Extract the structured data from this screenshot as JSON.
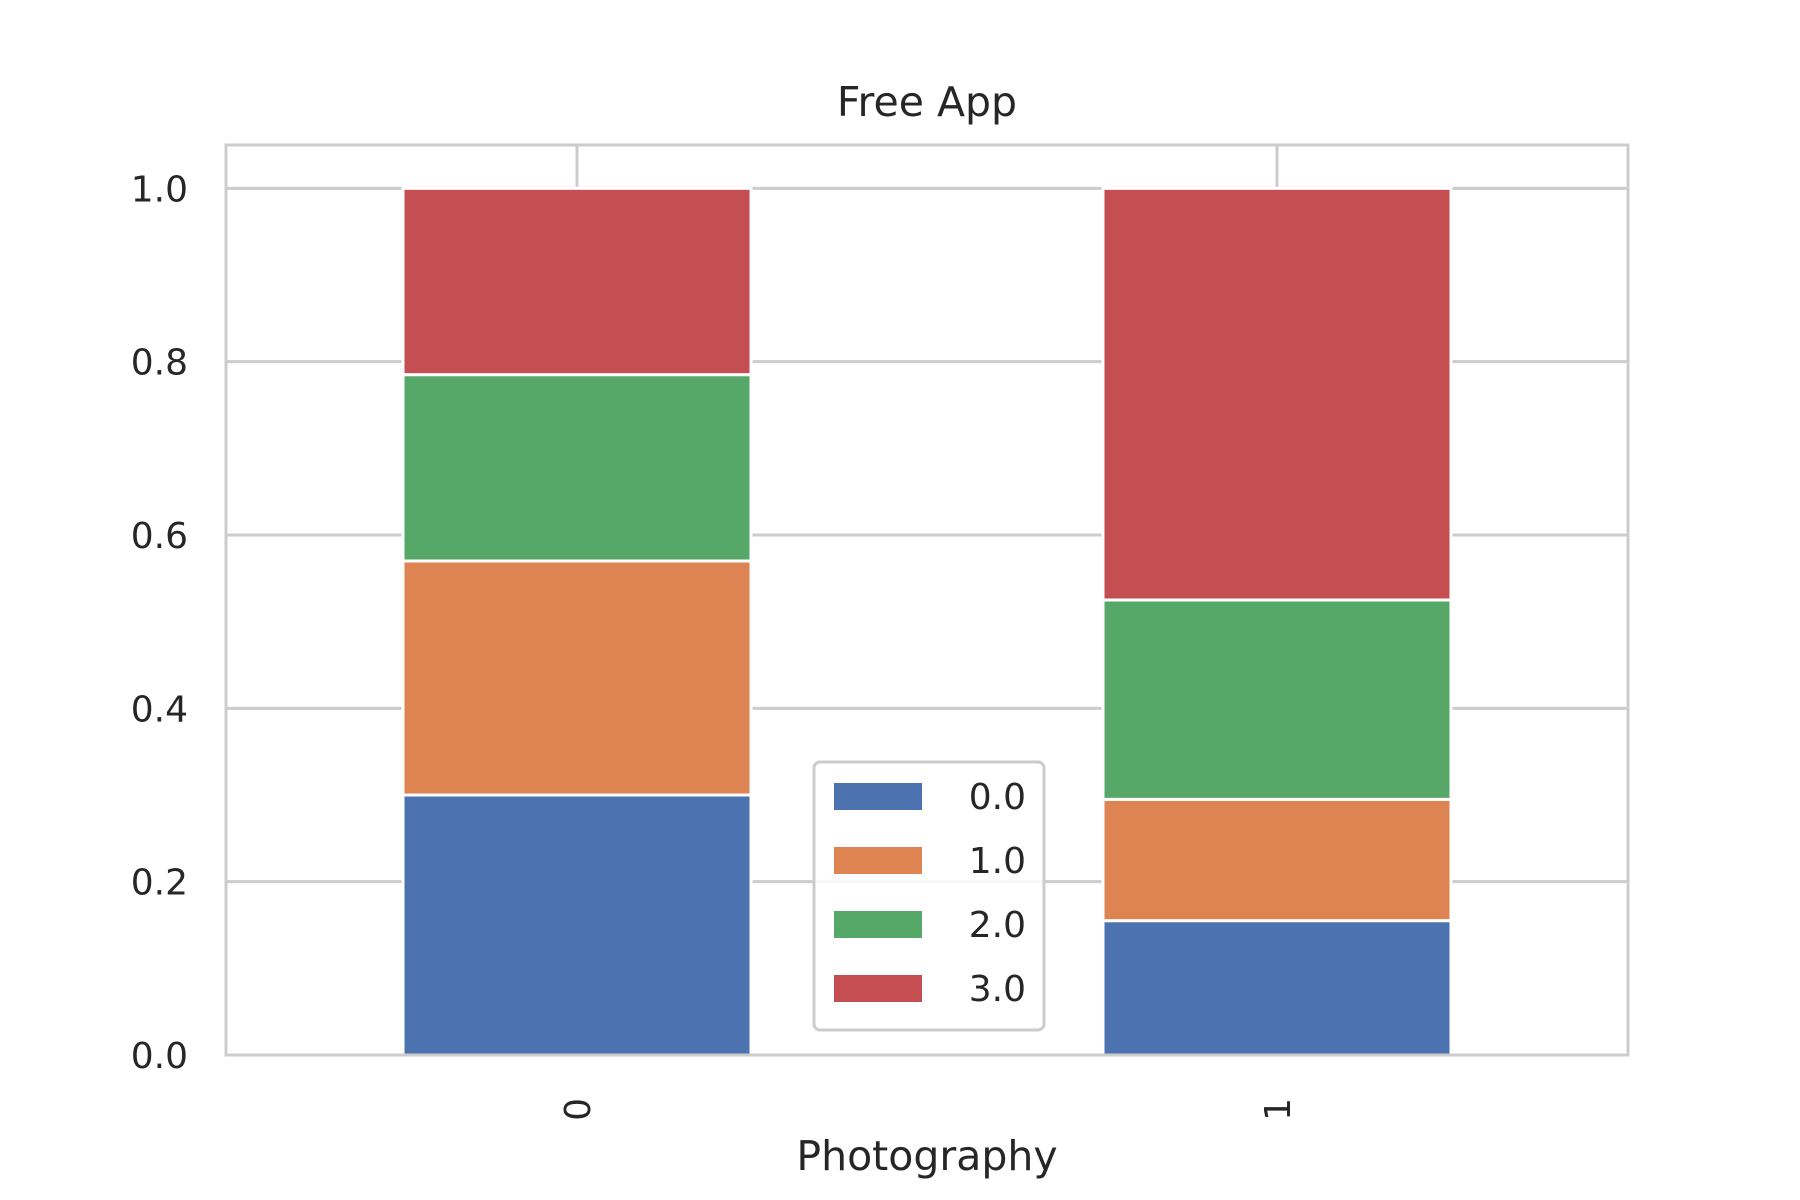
{
  "chart_data": {
    "type": "bar",
    "stacked": true,
    "title": "Free App",
    "xlabel": "Photography",
    "ylabel": "",
    "categories": [
      "0",
      "1"
    ],
    "ylim": [
      0,
      1.05
    ],
    "yticks": [
      "0.0",
      "0.2",
      "0.4",
      "0.6",
      "0.8",
      "1.0"
    ],
    "grid": true,
    "legend_position": "bottom-center",
    "series": [
      {
        "name": "0.0",
        "color": "#4c72b0",
        "values": [
          0.3,
          0.155
        ]
      },
      {
        "name": "1.0",
        "color": "#dd8452",
        "values": [
          0.27,
          0.14
        ]
      },
      {
        "name": "2.0",
        "color": "#55a868",
        "values": [
          0.215,
          0.23
        ]
      },
      {
        "name": "3.0",
        "color": "#c44e52",
        "values": [
          0.215,
          0.475
        ]
      }
    ]
  }
}
